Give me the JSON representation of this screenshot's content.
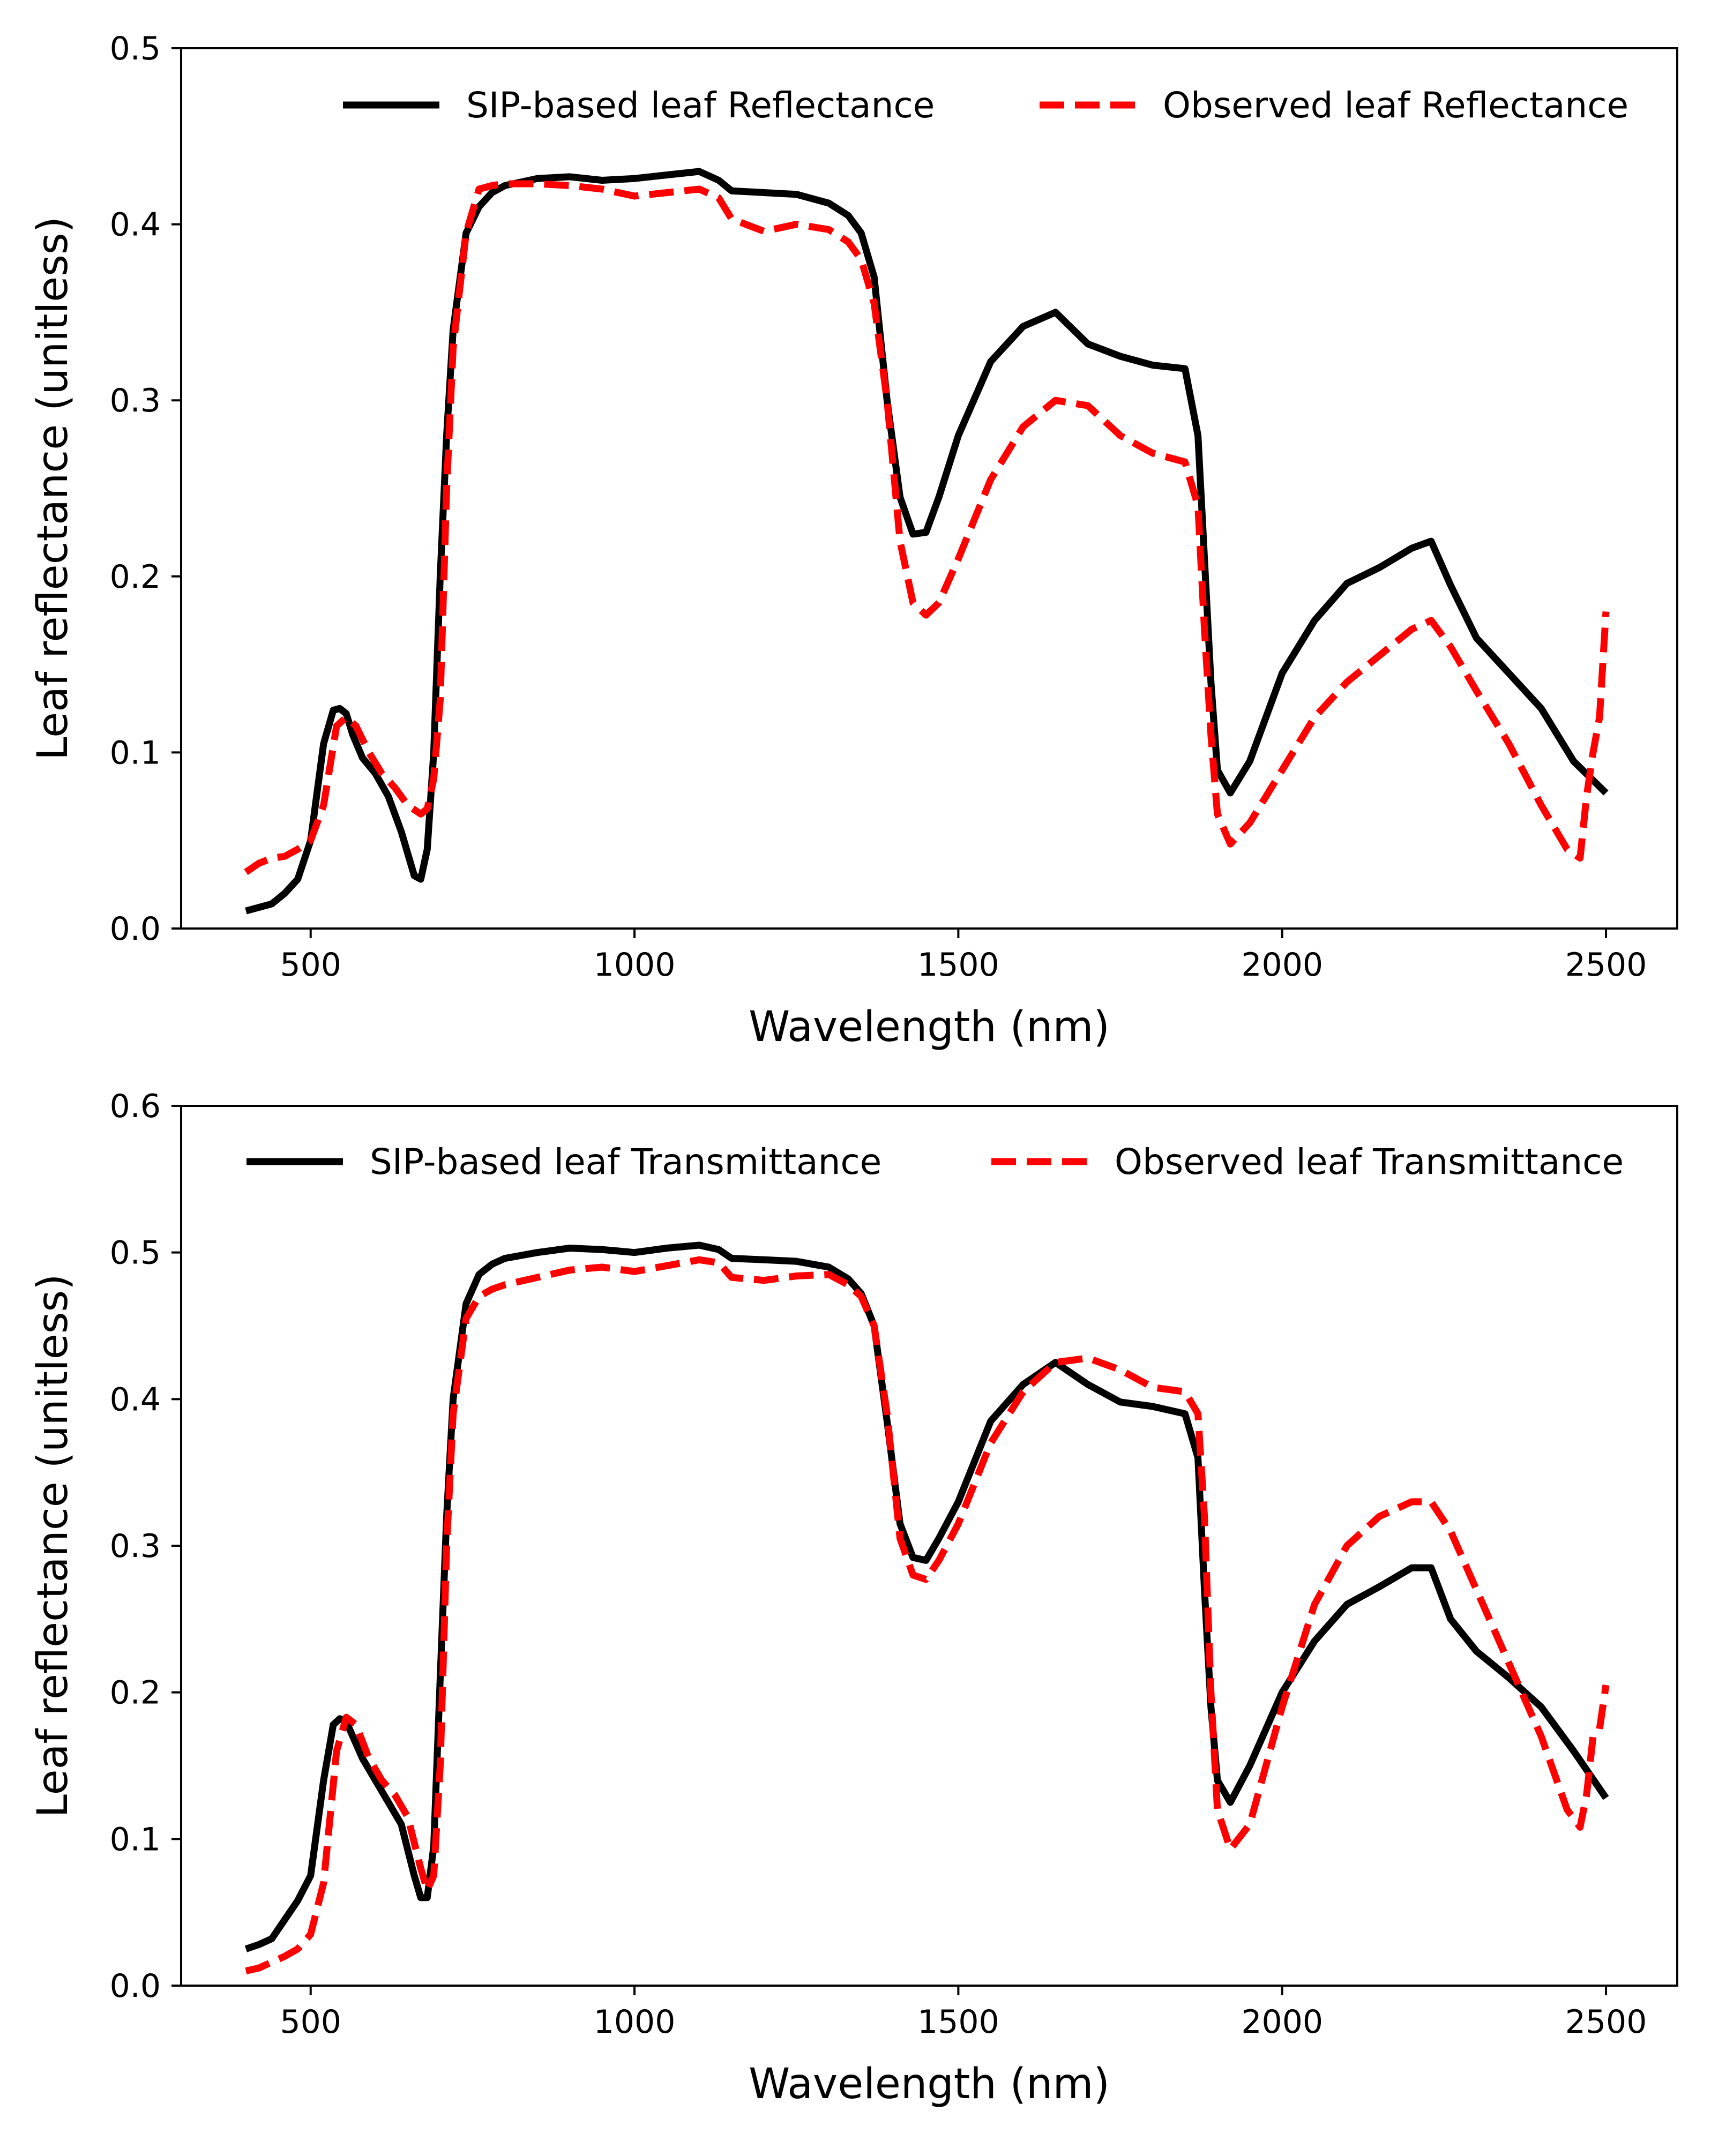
{
  "chart_data": [
    {
      "type": "line",
      "xlabel": "Wavelength (nm)",
      "ylabel": "Leaf reflectance (unitless)",
      "xlim": [
        300,
        2610
      ],
      "ylim": [
        0,
        0.5
      ],
      "xticks": [
        500,
        1000,
        1500,
        2000,
        2500
      ],
      "yticks": [
        0.0,
        0.1,
        0.2,
        0.3,
        0.4,
        0.5
      ],
      "xtick_labels": [
        "500",
        "1000",
        "1500",
        "2000",
        "2500"
      ],
      "ytick_labels": [
        "0.0",
        "0.1",
        "0.2",
        "0.3",
        "0.4",
        "0.5"
      ],
      "grid": false,
      "legend": "top-right, one row, no frame",
      "series": [
        {
          "name": "SIP-based leaf Reflectance",
          "color": "#000000",
          "style": "solid",
          "x": [
            400,
            420,
            440,
            460,
            480,
            500,
            520,
            535,
            545,
            555,
            565,
            580,
            600,
            620,
            640,
            660,
            670,
            680,
            690,
            700,
            710,
            720,
            740,
            760,
            780,
            800,
            850,
            900,
            950,
            1000,
            1050,
            1100,
            1130,
            1150,
            1200,
            1250,
            1300,
            1330,
            1350,
            1370,
            1390,
            1410,
            1430,
            1450,
            1470,
            1500,
            1550,
            1600,
            1650,
            1700,
            1750,
            1800,
            1850,
            1870,
            1880,
            1890,
            1900,
            1920,
            1950,
            2000,
            2050,
            2100,
            2150,
            2200,
            2230,
            2260,
            2300,
            2350,
            2400,
            2450,
            2500
          ],
          "y": [
            0.01,
            0.012,
            0.014,
            0.02,
            0.028,
            0.05,
            0.105,
            0.124,
            0.125,
            0.122,
            0.11,
            0.097,
            0.088,
            0.075,
            0.055,
            0.03,
            0.028,
            0.045,
            0.1,
            0.2,
            0.28,
            0.34,
            0.395,
            0.41,
            0.418,
            0.422,
            0.426,
            0.427,
            0.425,
            0.426,
            0.428,
            0.43,
            0.425,
            0.419,
            0.418,
            0.417,
            0.412,
            0.405,
            0.395,
            0.37,
            0.3,
            0.245,
            0.224,
            0.225,
            0.245,
            0.28,
            0.322,
            0.342,
            0.35,
            0.332,
            0.325,
            0.32,
            0.318,
            0.28,
            0.21,
            0.14,
            0.09,
            0.077,
            0.095,
            0.145,
            0.175,
            0.196,
            0.205,
            0.216,
            0.22,
            0.195,
            0.165,
            0.145,
            0.125,
            0.095,
            0.077
          ]
        },
        {
          "name": "Observed leaf Reflectance",
          "color": "#ff0000",
          "style": "dashed",
          "x": [
            400,
            420,
            440,
            460,
            480,
            500,
            520,
            540,
            555,
            570,
            590,
            610,
            630,
            650,
            670,
            680,
            690,
            700,
            710,
            720,
            740,
            760,
            780,
            800,
            850,
            900,
            950,
            1000,
            1050,
            1100,
            1130,
            1150,
            1200,
            1250,
            1300,
            1330,
            1350,
            1370,
            1390,
            1410,
            1430,
            1450,
            1470,
            1500,
            1550,
            1600,
            1650,
            1700,
            1750,
            1800,
            1850,
            1870,
            1880,
            1890,
            1900,
            1920,
            1950,
            2000,
            2050,
            2100,
            2150,
            2200,
            2230,
            2260,
            2300,
            2350,
            2400,
            2440,
            2460,
            2470,
            2480,
            2490,
            2500
          ],
          "y": [
            0.032,
            0.037,
            0.04,
            0.041,
            0.045,
            0.05,
            0.07,
            0.115,
            0.12,
            0.115,
            0.1,
            0.088,
            0.08,
            0.07,
            0.065,
            0.068,
            0.085,
            0.13,
            0.25,
            0.33,
            0.395,
            0.42,
            0.422,
            0.423,
            0.423,
            0.422,
            0.42,
            0.416,
            0.418,
            0.42,
            0.415,
            0.403,
            0.396,
            0.4,
            0.397,
            0.39,
            0.38,
            0.355,
            0.3,
            0.22,
            0.185,
            0.178,
            0.185,
            0.21,
            0.255,
            0.285,
            0.3,
            0.297,
            0.28,
            0.27,
            0.265,
            0.24,
            0.17,
            0.11,
            0.065,
            0.048,
            0.06,
            0.09,
            0.12,
            0.14,
            0.155,
            0.17,
            0.175,
            0.16,
            0.135,
            0.105,
            0.07,
            0.045,
            0.04,
            0.075,
            0.1,
            0.12,
            0.18
          ]
        }
      ]
    },
    {
      "type": "line",
      "xlabel": "Wavelength (nm)",
      "ylabel": "Leaf reflectance (unitless)",
      "xlim": [
        300,
        2610
      ],
      "ylim": [
        0,
        0.6
      ],
      "xticks": [
        500,
        1000,
        1500,
        2000,
        2500
      ],
      "yticks": [
        0.0,
        0.1,
        0.2,
        0.3,
        0.4,
        0.5,
        0.6
      ],
      "xtick_labels": [
        "500",
        "1000",
        "1500",
        "2000",
        "2500"
      ],
      "ytick_labels": [
        "0.0",
        "0.1",
        "0.2",
        "0.3",
        "0.4",
        "0.5",
        "0.6"
      ],
      "grid": false,
      "legend": "top, one row, no frame",
      "series": [
        {
          "name": "SIP-based leaf Transmittance",
          "color": "#000000",
          "style": "solid",
          "x": [
            400,
            420,
            440,
            460,
            480,
            500,
            520,
            535,
            545,
            555,
            565,
            580,
            600,
            620,
            640,
            660,
            670,
            680,
            690,
            700,
            710,
            720,
            740,
            760,
            780,
            800,
            850,
            900,
            950,
            1000,
            1050,
            1100,
            1130,
            1150,
            1200,
            1250,
            1300,
            1330,
            1350,
            1370,
            1390,
            1410,
            1430,
            1450,
            1470,
            1500,
            1550,
            1600,
            1650,
            1700,
            1750,
            1800,
            1850,
            1870,
            1880,
            1890,
            1900,
            1920,
            1950,
            2000,
            2050,
            2100,
            2150,
            2200,
            2230,
            2260,
            2300,
            2350,
            2400,
            2450,
            2500
          ],
          "y": [
            0.025,
            0.028,
            0.032,
            0.045,
            0.058,
            0.075,
            0.14,
            0.178,
            0.182,
            0.18,
            0.17,
            0.155,
            0.14,
            0.125,
            0.11,
            0.075,
            0.06,
            0.06,
            0.095,
            0.21,
            0.32,
            0.4,
            0.465,
            0.485,
            0.492,
            0.496,
            0.5,
            0.503,
            0.502,
            0.5,
            0.503,
            0.505,
            0.502,
            0.496,
            0.495,
            0.494,
            0.49,
            0.482,
            0.472,
            0.45,
            0.385,
            0.315,
            0.292,
            0.29,
            0.305,
            0.33,
            0.385,
            0.41,
            0.425,
            0.41,
            0.398,
            0.395,
            0.39,
            0.36,
            0.27,
            0.19,
            0.14,
            0.125,
            0.15,
            0.2,
            0.235,
            0.26,
            0.272,
            0.285,
            0.285,
            0.25,
            0.228,
            0.21,
            0.19,
            0.16,
            0.128
          ]
        },
        {
          "name": "Observed leaf Transmittance",
          "color": "#ff0000",
          "style": "dashed",
          "x": [
            400,
            420,
            440,
            460,
            480,
            500,
            520,
            540,
            555,
            570,
            590,
            610,
            630,
            650,
            670,
            680,
            690,
            700,
            710,
            720,
            740,
            760,
            780,
            800,
            850,
            900,
            950,
            1000,
            1050,
            1100,
            1130,
            1150,
            1200,
            1250,
            1300,
            1330,
            1350,
            1370,
            1390,
            1410,
            1430,
            1450,
            1470,
            1500,
            1550,
            1600,
            1650,
            1700,
            1750,
            1800,
            1850,
            1870,
            1880,
            1890,
            1900,
            1920,
            1950,
            2000,
            2050,
            2100,
            2150,
            2200,
            2230,
            2260,
            2300,
            2350,
            2400,
            2440,
            2460,
            2470,
            2480,
            2490,
            2500
          ],
          "y": [
            0.01,
            0.012,
            0.016,
            0.02,
            0.025,
            0.035,
            0.07,
            0.16,
            0.183,
            0.178,
            0.155,
            0.14,
            0.13,
            0.115,
            0.08,
            0.065,
            0.075,
            0.15,
            0.3,
            0.39,
            0.455,
            0.47,
            0.475,
            0.478,
            0.483,
            0.488,
            0.49,
            0.487,
            0.491,
            0.495,
            0.493,
            0.483,
            0.481,
            0.484,
            0.485,
            0.478,
            0.47,
            0.45,
            0.39,
            0.305,
            0.28,
            0.277,
            0.29,
            0.315,
            0.37,
            0.405,
            0.425,
            0.428,
            0.42,
            0.408,
            0.405,
            0.39,
            0.32,
            0.2,
            0.12,
            0.093,
            0.11,
            0.19,
            0.26,
            0.3,
            0.32,
            0.33,
            0.33,
            0.31,
            0.27,
            0.22,
            0.17,
            0.12,
            0.108,
            0.13,
            0.17,
            0.175,
            0.205
          ]
        }
      ]
    }
  ]
}
